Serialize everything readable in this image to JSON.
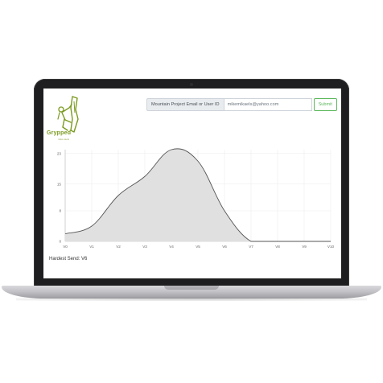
{
  "app": {
    "logo_text": "Grypped",
    "logo_sub": "mike kaels",
    "brand_color": "#7a9a1e"
  },
  "form": {
    "label": "Mountain Project Email or User ID",
    "input_value": "mikemikaels@yahoo.com",
    "submit_label": "Submit",
    "submit_color": "#5cb85c"
  },
  "hardest_send": {
    "label": "Hardest Send:",
    "value": "V6"
  },
  "chart_data": {
    "type": "area",
    "categories": [
      "V0",
      "V1",
      "V2",
      "V3",
      "V4",
      "V5",
      "V6",
      "V7",
      "V8",
      "V9",
      "V10"
    ],
    "values": [
      2,
      4,
      12,
      17,
      24,
      21,
      8,
      0,
      0,
      0,
      0
    ],
    "yticks": [
      0,
      8,
      15,
      23
    ],
    "ylim": [
      0,
      24
    ],
    "grid": true,
    "fill_color": "#e0e0e0",
    "line_color": "#555555"
  }
}
